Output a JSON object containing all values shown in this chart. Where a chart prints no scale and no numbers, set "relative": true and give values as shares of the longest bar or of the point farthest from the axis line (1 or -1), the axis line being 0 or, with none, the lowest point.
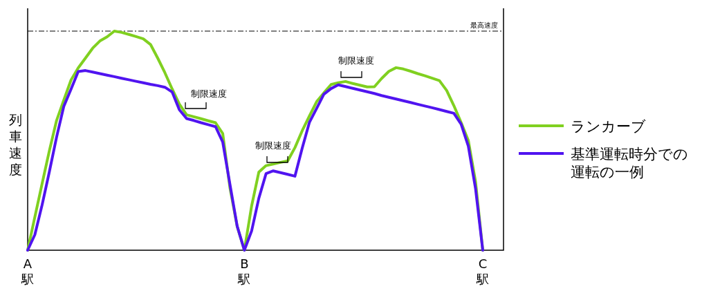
{
  "chart_data": {
    "type": "line",
    "relative": true,
    "ylabel": "列車速度",
    "legend": "right",
    "categories": [
      "A駅",
      null,
      null,
      null,
      null,
      null,
      null,
      null,
      null,
      null,
      null,
      null,
      null,
      null,
      null,
      null,
      null,
      null,
      null,
      null,
      null,
      null,
      null,
      null,
      null,
      null,
      null,
      null,
      null,
      null,
      "B駅",
      null,
      null,
      null,
      null,
      null,
      null,
      null,
      null,
      null,
      null,
      null,
      null,
      null,
      null,
      null,
      null,
      null,
      null,
      null,
      null,
      null,
      null,
      null,
      null,
      null,
      null,
      null,
      null,
      null,
      null,
      null,
      null,
      "C駅"
    ],
    "ref_lines": [
      {
        "axis": "y",
        "value": 1.0,
        "label": "最高速度",
        "color": "#000000",
        "line_style": "dashdot"
      }
    ],
    "annotations": [
      "制限速度",
      "制限速度",
      "制限速度"
    ],
    "series": [
      {
        "name": "ランカーブ",
        "color": "#80d020",
        "values": [
          0,
          0.152,
          0.304,
          0.453,
          0.592,
          0.685,
          0.777,
          0.832,
          0.877,
          0.922,
          0.955,
          0.974,
          1.0,
          0.994,
          0.985,
          0.975,
          0.965,
          0.939,
          0.877,
          0.81,
          0.736,
          0.667,
          0.618,
          0.609,
          0.6,
          0.591,
          0.582,
          0.533,
          0.286,
          0.109,
          0,
          0.202,
          0.356,
          0.386,
          0.393,
          0.401,
          0.408,
          0.468,
          0.545,
          0.612,
          0.678,
          0.718,
          0.756,
          0.764,
          0.77,
          0.761,
          0.753,
          0.745,
          0.746,
          0.784,
          0.816,
          0.833,
          0.827,
          0.817,
          0.806,
          0.796,
          0.785,
          0.774,
          0.729,
          0.66,
          0.583,
          0.501,
          0.312,
          0
        ]
      },
      {
        "name": "基準運転時分での運転の一例",
        "color": "#5014f0",
        "values": [
          0,
          0.071,
          0.207,
          0.357,
          0.516,
          0.656,
          0.735,
          0.815,
          0.82,
          0.813,
          0.806,
          0.799,
          0.792,
          0.785,
          0.778,
          0.771,
          0.764,
          0.757,
          0.751,
          0.744,
          0.722,
          0.641,
          0.601,
          0.592,
          0.582,
          0.573,
          0.564,
          0.494,
          0.302,
          0.11,
          0,
          0.088,
          0.237,
          0.35,
          0.362,
          0.354,
          0.346,
          0.338,
          0.465,
          0.583,
          0.647,
          0.712,
          0.738,
          0.755,
          0.747,
          0.739,
          0.731,
          0.723,
          0.715,
          0.706,
          0.698,
          0.69,
          0.682,
          0.674,
          0.666,
          0.658,
          0.65,
          0.642,
          0.633,
          0.625,
          0.575,
          0.475,
          0.28,
          0
        ]
      }
    ]
  }
}
